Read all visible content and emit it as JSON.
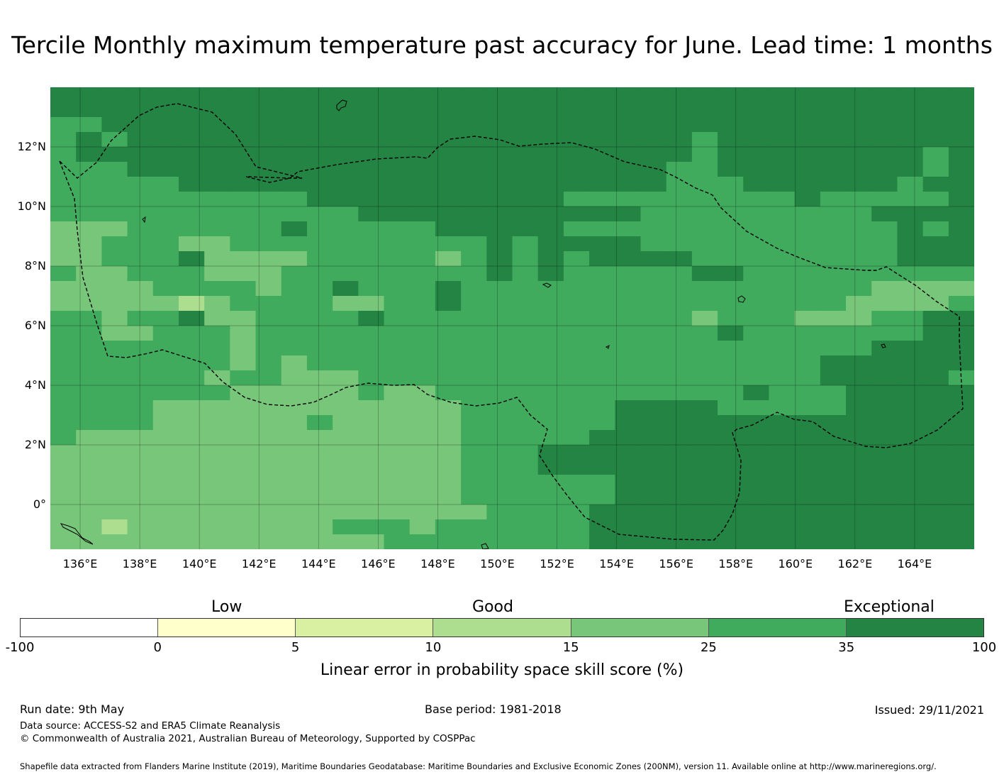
{
  "title": "Tercile Monthly maximum temperature past accuracy for June. Lead time: 1 months",
  "map": {
    "lat_labels": [
      "12°N",
      "10°N",
      "8°N",
      "6°N",
      "4°N",
      "2°N",
      "0°"
    ],
    "lon_labels": [
      "136°E",
      "138°E",
      "140°E",
      "142°E",
      "144°E",
      "146°E",
      "148°E",
      "150°E",
      "152°E",
      "154°E",
      "156°E",
      "158°E",
      "160°E",
      "162°E",
      "164°E"
    ],
    "lon_range": [
      135.0,
      166.0
    ],
    "lat_range": [
      -1.5,
      14.0
    ],
    "grid": true,
    "boundary": "dashed EEZ outline (Federated States of Micronesia)",
    "colors": [
      "#ffffff",
      "#ffffcc",
      "#d9f0a3",
      "#addd8e",
      "#78c679",
      "#41ab5d",
      "#238443"
    ],
    "score_grid_rows": [
      "666666666666666666666666666666666666",
      "666666666666666666666666666666666666",
      "556666666666666666666666666666666666",
      "565666666666666666666666656666666666",
      "566666666666666666666666656666666656",
      "555666666666666666666666556666666656",
      "555556666666666666666666555666666566",
      "555555555566666666665555555556555556",
      "555555555555666666666665555555556666",
      "444555555655555666665555555555555656",
      "445554455555555556566665555555555666",
      "445556444455555456565666655555555666",
      "544555444555555556565555566555555555",
      "444455554556555655555555555555554444",
      "444443455554455655555555555555544445",
      "554556445555655555555555545554445566",
      "554455545555555555555555556555555566",
      "555555545555555555555555555555556666",
      "555555545455555555555555555555666666",
      "555555455444555555555555555555666665",
      "555555544444544555555555555655566666",
      "555544444444444455555566665555566666",
      "555544444454444455555566666666666666",
      "544444444444444455555666666666666666",
      "444444444444444455566666666666666666",
      "444444444444444455566666666666666666",
      "444444444444444455555566666666666666",
      "444444444444444455555566666666666666",
      "444444444444444445555666666666666666",
      "443444444445554555555666666666666666",
      "444444444444455555555666666666666666"
    ]
  },
  "legend": {
    "classes": [
      "Low",
      "Good",
      "Exceptional"
    ],
    "ticks": [
      "-100",
      "0",
      "5",
      "10",
      "15",
      "25",
      "35",
      "100"
    ],
    "colors": [
      "#ffffff",
      "#ffffcc",
      "#d9f0a3",
      "#addd8e",
      "#78c679",
      "#41ab5d",
      "#238443"
    ],
    "label": "Linear error in probability space skill score (%)"
  },
  "footer": {
    "run_date": "Run date: 9th May",
    "base_period": "Base period: 1981-2018",
    "issued": "Issued: 29/11/2021",
    "data_source": "Data source: ACCESS-S2 and ERA5 Climate Reanalysis",
    "copyright": "© Commonwealth of Australia 2021, Australian Bureau of Meteorology, Supported by COSPPac",
    "shapefile": "Shapefile data extracted from Flanders Marine Institute (2019), Maritime Boundaries Geodatabase: Maritime Boundaries and Exclusive Economic Zones (200NM), version 11. Available online at http://www.marineregions.org/."
  }
}
